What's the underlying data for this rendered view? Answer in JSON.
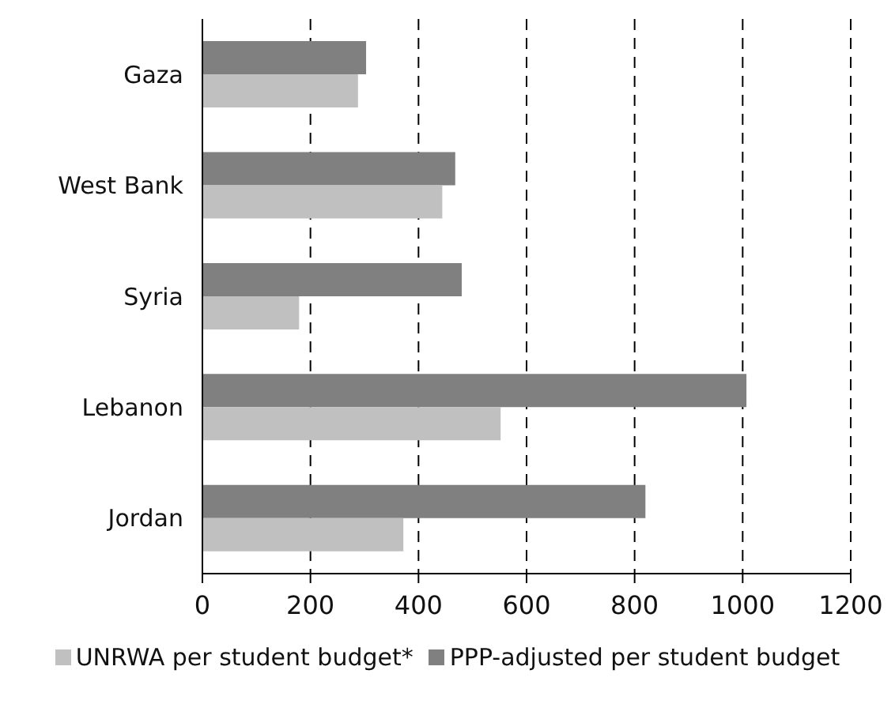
{
  "chart_data": {
    "type": "bar",
    "orientation": "horizontal",
    "categories": [
      "Gaza",
      "West Bank",
      "Syria",
      "Lebanon",
      "Jordan"
    ],
    "series": [
      {
        "name": "UNRWA per student budget*",
        "color": "#c0c0c0",
        "values": [
          288,
          444,
          179,
          552,
          372
        ]
      },
      {
        "name": "PPP-adjusted per student budget",
        "color": "#808080",
        "values": [
          303,
          468,
          480,
          1007,
          820
        ]
      }
    ],
    "xlim": [
      0,
      1200
    ],
    "xticks": [
      0,
      200,
      400,
      600,
      800,
      1000,
      1200
    ],
    "grid": "x",
    "legend": "bottom"
  }
}
